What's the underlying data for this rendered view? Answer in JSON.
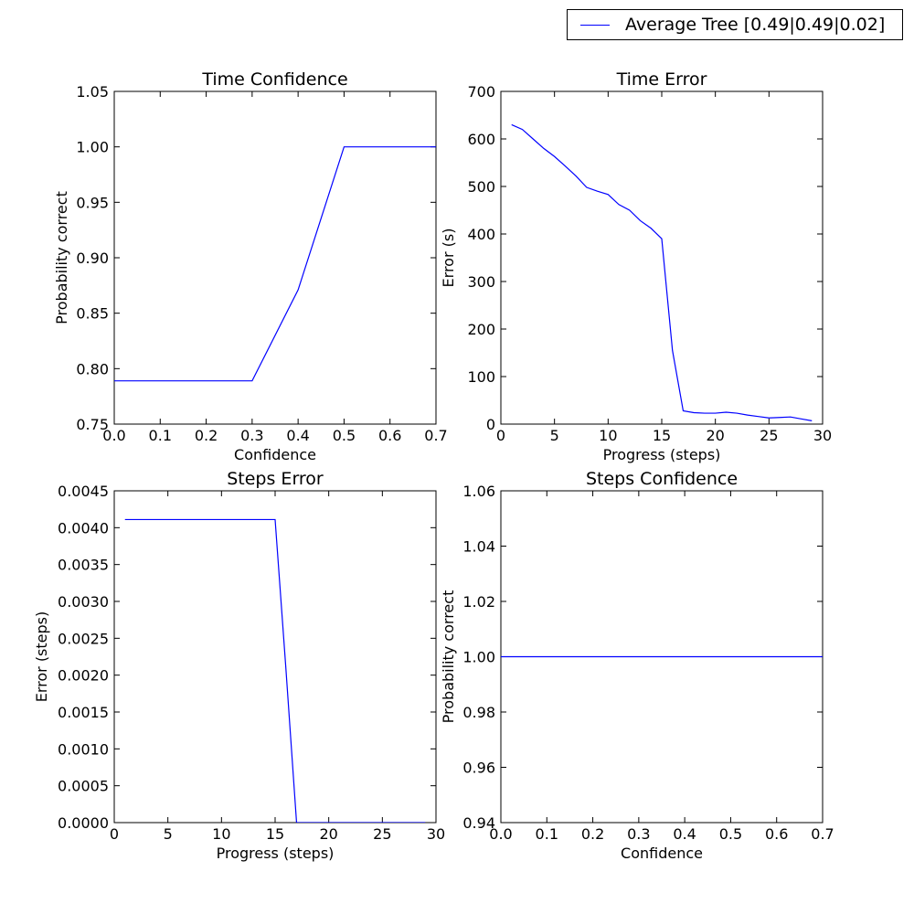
{
  "legend": {
    "label": "Average Tree [0.49|0.49|0.02]",
    "color": "#0000ff",
    "location": "top-right"
  },
  "chart_data": [
    {
      "type": "line",
      "title": "Time Confidence",
      "xlabel": "Confidence",
      "ylabel": "Probability correct",
      "xlim": [
        0.0,
        0.7
      ],
      "ylim": [
        0.75,
        1.05
      ],
      "xticks": [
        "0.0",
        "0.1",
        "0.2",
        "0.3",
        "0.4",
        "0.5",
        "0.6",
        "0.7"
      ],
      "yticks": [
        "0.75",
        "0.80",
        "0.85",
        "0.90",
        "0.95",
        "1.00",
        "1.05"
      ],
      "grid": false,
      "series": [
        {
          "name": "Average Tree [0.49|0.49|0.02]",
          "color": "#0000ff",
          "x": [
            0.0,
            0.1,
            0.2,
            0.3,
            0.4,
            0.5,
            0.6,
            0.7
          ],
          "y": [
            0.789,
            0.789,
            0.789,
            0.789,
            0.871,
            1.0,
            1.0,
            1.0
          ]
        }
      ]
    },
    {
      "type": "line",
      "title": "Time Error",
      "xlabel": "Progress (steps)",
      "ylabel": "Error (s)",
      "xlim": [
        0,
        30
      ],
      "ylim": [
        0,
        700
      ],
      "xticks": [
        "0",
        "5",
        "10",
        "15",
        "20",
        "25",
        "30"
      ],
      "yticks": [
        "0",
        "100",
        "200",
        "300",
        "400",
        "500",
        "600",
        "700"
      ],
      "grid": false,
      "series": [
        {
          "name": "Average Tree [0.49|0.49|0.02]",
          "color": "#0000ff",
          "x": [
            1,
            2,
            3,
            4,
            5,
            6,
            7,
            8,
            9,
            10,
            11,
            12,
            13,
            14,
            15,
            16,
            17,
            18,
            19,
            20,
            21,
            22,
            23,
            24,
            25,
            26,
            27,
            28,
            29
          ],
          "y": [
            630,
            620,
            600,
            580,
            563,
            543,
            522,
            498,
            490,
            483,
            462,
            450,
            428,
            412,
            390,
            155,
            28,
            24,
            23,
            23,
            25,
            23,
            19,
            16,
            13,
            14,
            15,
            11,
            7
          ]
        }
      ]
    },
    {
      "type": "line",
      "title": "Steps Error",
      "xlabel": "Progress (steps)",
      "ylabel": "Error (steps)",
      "xlim": [
        0,
        30
      ],
      "ylim": [
        0.0,
        0.0045
      ],
      "xticks": [
        "0",
        "5",
        "10",
        "15",
        "20",
        "25",
        "30"
      ],
      "yticks": [
        "0.0000",
        "0.0005",
        "0.0010",
        "0.0015",
        "0.0020",
        "0.0025",
        "0.0030",
        "0.0035",
        "0.0040",
        "0.0045"
      ],
      "grid": false,
      "series": [
        {
          "name": "Average Tree [0.49|0.49|0.02]",
          "color": "#0000ff",
          "x": [
            1,
            2,
            3,
            4,
            5,
            6,
            7,
            8,
            9,
            10,
            11,
            12,
            13,
            14,
            15,
            16,
            17,
            18,
            19,
            20,
            21,
            22,
            23,
            24,
            25,
            26,
            27,
            28,
            29
          ],
          "y": [
            0.00411,
            0.00411,
            0.00411,
            0.00411,
            0.00411,
            0.00411,
            0.00411,
            0.00411,
            0.00411,
            0.00411,
            0.00411,
            0.00411,
            0.00411,
            0.00411,
            0.00411,
            0.0021,
            0.0,
            0.0,
            0.0,
            0.0,
            0.0,
            0.0,
            0.0,
            0.0,
            0.0,
            0.0,
            0.0,
            0.0,
            0.0
          ]
        }
      ]
    },
    {
      "type": "line",
      "title": "Steps Confidence",
      "xlabel": "Confidence",
      "ylabel": "Probability correct",
      "xlim": [
        0.0,
        0.7
      ],
      "ylim": [
        0.94,
        1.06
      ],
      "xticks": [
        "0.0",
        "0.1",
        "0.2",
        "0.3",
        "0.4",
        "0.5",
        "0.6",
        "0.7"
      ],
      "yticks": [
        "0.94",
        "0.96",
        "0.98",
        "1.00",
        "1.02",
        "1.04",
        "1.06"
      ],
      "grid": false,
      "series": [
        {
          "name": "Average Tree [0.49|0.49|0.02]",
          "color": "#0000ff",
          "x": [
            0.0,
            0.1,
            0.2,
            0.3,
            0.4,
            0.5,
            0.6,
            0.7
          ],
          "y": [
            1.0,
            1.0,
            1.0,
            1.0,
            1.0,
            1.0,
            1.0,
            1.0
          ]
        }
      ]
    }
  ]
}
